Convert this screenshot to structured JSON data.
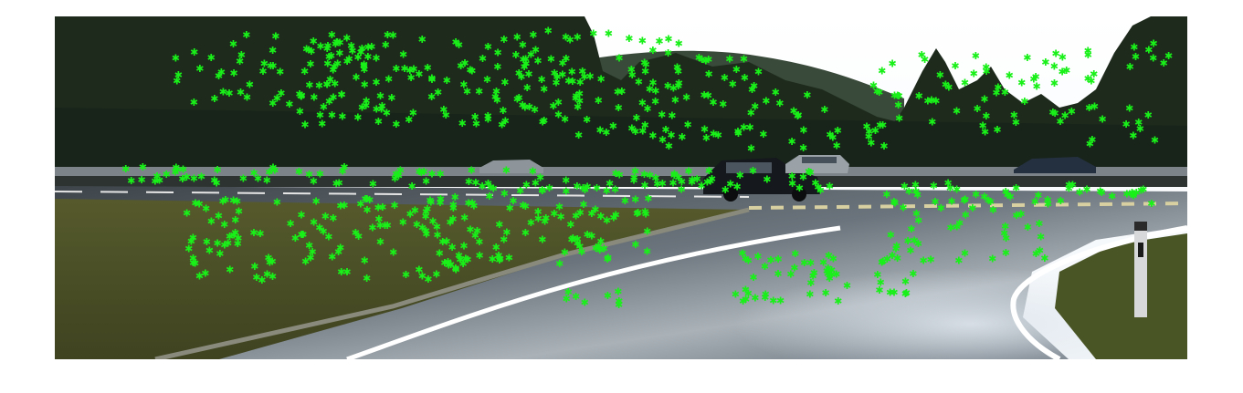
{
  "image": {
    "kind": "street-scene-photo-with-feature-overlay",
    "scene_elements": [
      "forest-treeline",
      "hillside",
      "bright-sky",
      "road-intersection",
      "parked-cars",
      "grass-verge",
      "curb",
      "lane-markings",
      "reflector-post"
    ],
    "marker_color": "#19f019",
    "marker_glyph": "asterisk",
    "colors": {
      "sky": "#f8fbff",
      "forest": "#1f2b1e",
      "road": "#5f6870",
      "grass": "#4f5528",
      "lane": "#ffffff"
    }
  }
}
